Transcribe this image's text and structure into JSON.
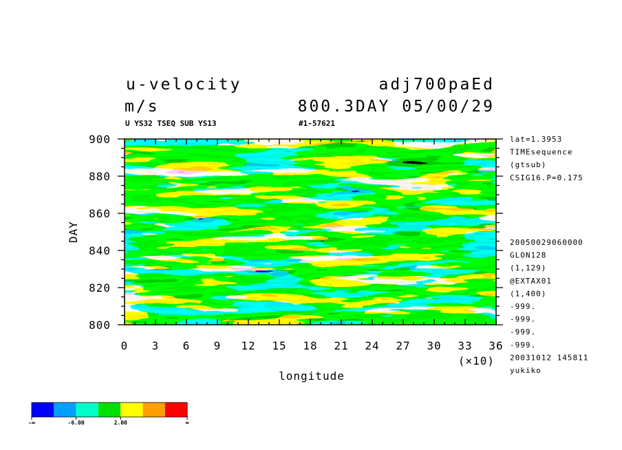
{
  "header": {
    "variable": "u-velocity",
    "units": "m/s",
    "run_name": "adj700paEd",
    "time_label": "800.3DAY 05/00/29",
    "subtitle_left": "U YS32 TSEQ SUB YS13",
    "subtitle_right": "#1-57621"
  },
  "side_info_top": [
    "lat=1.3953",
    "TIMEsequence",
    "(gtsub)",
    "CSIG16.P=0.175"
  ],
  "side_info_bottom": [
    "20050029060000",
    "GLON128",
    "(1,129)",
    "@EXTAX01",
    "(1,400)",
    "-999.",
    "-999.",
    "-999.",
    "-999.",
    "20031012 145811",
    "yukiko"
  ],
  "chart_data": {
    "type": "heatmap",
    "xlabel": "longitude",
    "ylabel": "DAY",
    "x_multiplier_label": "(×10)",
    "xlim": [
      0,
      36
    ],
    "ylim": [
      800,
      900
    ],
    "x_ticks": [
      "0",
      "3",
      "6",
      "9",
      "12",
      "15",
      "18",
      "21",
      "24",
      "27",
      "30",
      "33",
      "36"
    ],
    "y_ticks": [
      "800",
      "820",
      "840",
      "860",
      "880",
      "900"
    ],
    "colorbar": {
      "colors": [
        "#0000ff",
        "#00a0ff",
        "#00ffc8",
        "#00e000",
        "#ffff00",
        "#ffa000",
        "#ff0000"
      ],
      "labels": [
        "-∞",
        "-6.00",
        "2.00",
        "∞"
      ]
    }
  }
}
